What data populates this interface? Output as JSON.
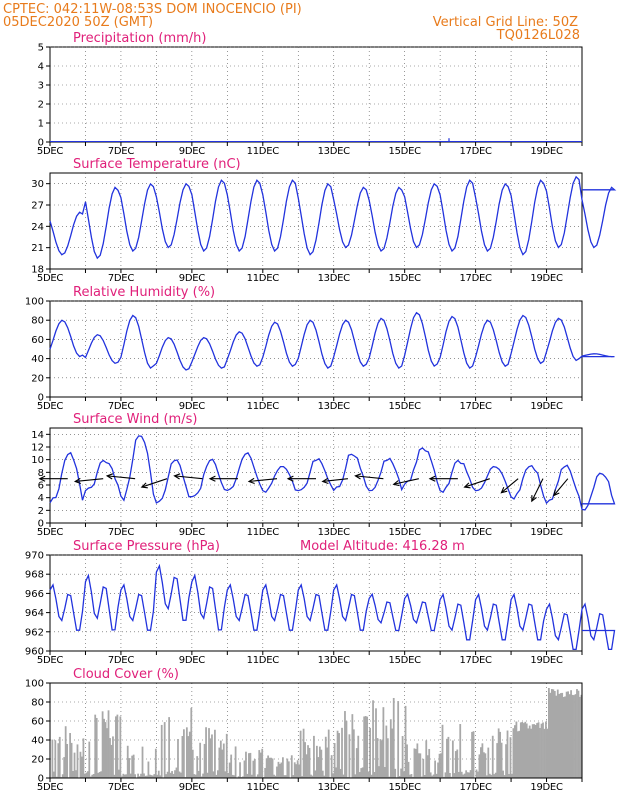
{
  "header": {
    "line1": "CPTEC:   042:11W-08:53S   DOM INOCENCIO (PI)",
    "line2": "05DEC2020 50Z (GMT)",
    "grid_label": "Vertical Grid Line: 50Z",
    "code": "TQ0126L028"
  },
  "colors": {
    "header": "#e87b1c",
    "title": "#e0207a",
    "line": "#2233dd",
    "bar": "#a8a8a8"
  },
  "chart_data": [
    {
      "type": "bar",
      "title": "Precipitation (mm/h)",
      "ylim": [
        0,
        5
      ],
      "yticks": [
        0,
        1,
        2,
        3,
        4,
        5
      ],
      "xlabels": [
        "5DEC",
        "7DEC",
        "9DEC",
        "11DEC",
        "13DEC",
        "15DEC",
        "17DEC",
        "19DEC"
      ],
      "xlim_days": [
        5,
        20
      ],
      "grid": true,
      "x_days": [
        16.25
      ],
      "values": [
        0.2
      ]
    },
    {
      "type": "line",
      "title": "Surface Temperature (nC)",
      "ylim": [
        18,
        31.5
      ],
      "yticks": [
        18,
        21,
        24,
        27,
        30
      ],
      "xlabels": [
        "5DEC",
        "7DEC",
        "9DEC",
        "11DEC",
        "13DEC",
        "15DEC",
        "17DEC",
        "19DEC"
      ],
      "xlim_days": [
        5,
        20
      ],
      "grid": true,
      "daily_min": [
        20.0,
        19.5,
        20.5,
        21.0,
        20.5,
        20.5,
        20.5,
        20.0,
        21.0,
        20.5,
        21.0,
        20.5,
        20.5,
        20.0,
        21.0,
        21.0
      ],
      "daily_max": [
        26.0,
        29.5,
        30.0,
        30.0,
        30.5,
        30.5,
        30.5,
        30.0,
        29.5,
        29.5,
        30.0,
        30.5,
        30.0,
        30.5,
        31.0,
        29.5
      ]
    },
    {
      "type": "line",
      "title": "Relative Humidity (%)",
      "ylim": [
        0,
        100
      ],
      "yticks": [
        0,
        20,
        40,
        60,
        80,
        100
      ],
      "xlabels": [
        "5DEC",
        "7DEC",
        "9DEC",
        "11DEC",
        "13DEC",
        "15DEC",
        "17DEC",
        "19DEC"
      ],
      "xlim_days": [
        5,
        20
      ],
      "grid": true,
      "daily_max": [
        80,
        65,
        85,
        62,
        62,
        68,
        78,
        80,
        80,
        82,
        88,
        84,
        80,
        85,
        82,
        45
      ],
      "daily_min": [
        42,
        35,
        30,
        28,
        30,
        32,
        32,
        30,
        32,
        30,
        32,
        30,
        32,
        35,
        38,
        42
      ]
    },
    {
      "type": "line",
      "title": "Surface Wind (m/s)",
      "ylim": [
        0,
        15
      ],
      "yticks": [
        0,
        2,
        4,
        6,
        8,
        10,
        12,
        14
      ],
      "xlabels": [
        "5DEC",
        "7DEC",
        "9DEC",
        "11DEC",
        "13DEC",
        "15DEC",
        "17DEC",
        "19DEC"
      ],
      "xlim_days": [
        5,
        20
      ],
      "grid": true,
      "daily_max": [
        11,
        10,
        14,
        10,
        10,
        11,
        9,
        10,
        11,
        10,
        12,
        10,
        9,
        9,
        9,
        8
      ],
      "daily_min": [
        3,
        5,
        4,
        3,
        4,
        5,
        5,
        5,
        5,
        5,
        6,
        5,
        5,
        4,
        3,
        2
      ],
      "arrows": [
        {
          "day": 5.5,
          "u": -1.0,
          "v": 0.0
        },
        {
          "day": 6.5,
          "u": -1.0,
          "v": -0.1
        },
        {
          "day": 7.4,
          "u": -1.0,
          "v": 0.1
        },
        {
          "day": 8.3,
          "u": -0.9,
          "v": -0.3
        },
        {
          "day": 9.3,
          "u": -1.0,
          "v": 0.1
        },
        {
          "day": 10.3,
          "u": -1.0,
          "v": 0.0
        },
        {
          "day": 11.4,
          "u": -1.0,
          "v": -0.1
        },
        {
          "day": 12.5,
          "u": -1.0,
          "v": 0.0
        },
        {
          "day": 13.4,
          "u": -0.9,
          "v": -0.1
        },
        {
          "day": 14.4,
          "u": -1.0,
          "v": 0.1
        },
        {
          "day": 15.4,
          "u": -0.9,
          "v": -0.2
        },
        {
          "day": 16.5,
          "u": -1.0,
          "v": 0.0
        },
        {
          "day": 17.4,
          "u": -0.9,
          "v": -0.3
        },
        {
          "day": 18.2,
          "u": -0.6,
          "v": -0.5
        },
        {
          "day": 18.9,
          "u": -0.4,
          "v": -0.8
        },
        {
          "day": 19.6,
          "u": -0.5,
          "v": -0.6
        }
      ]
    },
    {
      "type": "line",
      "title": "Surface Pressure (hPa)",
      "subtitle": "Model Altitude: 416.28 m",
      "ylim": [
        960,
        970
      ],
      "yticks": [
        960,
        962,
        964,
        966,
        968,
        970
      ],
      "xlabels": [
        "5DEC",
        "7DEC",
        "9DEC",
        "11DEC",
        "13DEC",
        "15DEC",
        "17DEC",
        "19DEC"
      ],
      "xlim_days": [
        5,
        20
      ],
      "grid": true,
      "daily_max": [
        967,
        968,
        967,
        969,
        968,
        967,
        967,
        967,
        967,
        966,
        966,
        966,
        966,
        966,
        965,
        965
      ],
      "daily_min": [
        962,
        962,
        962,
        963,
        962,
        962,
        962,
        962,
        962,
        962,
        962,
        961,
        961,
        961,
        960,
        960
      ]
    },
    {
      "type": "area",
      "title": "Cloud Cover (%)",
      "ylim": [
        0,
        100
      ],
      "yticks": [
        0,
        20,
        40,
        60,
        80,
        100
      ],
      "xlabels": [
        "5DEC",
        "7DEC",
        "9DEC",
        "11DEC",
        "13DEC",
        "15DEC",
        "17DEC",
        "19DEC"
      ],
      "xlim_days": [
        5,
        20
      ],
      "grid": true,
      "daily_level": [
        55,
        75,
        35,
        80,
        55,
        35,
        25,
        55,
        75,
        85,
        40,
        70,
        55,
        60,
        95,
        90
      ]
    }
  ]
}
